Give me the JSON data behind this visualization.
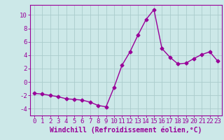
{
  "x": [
    0,
    1,
    2,
    3,
    4,
    5,
    6,
    7,
    8,
    9,
    10,
    11,
    12,
    13,
    14,
    15,
    16,
    17,
    18,
    19,
    20,
    21,
    22,
    23
  ],
  "y": [
    -1.7,
    -1.8,
    -2.0,
    -2.2,
    -2.5,
    -2.6,
    -2.7,
    -3.0,
    -3.5,
    -3.7,
    -0.8,
    2.5,
    4.5,
    7.0,
    9.3,
    10.8,
    5.0,
    3.7,
    2.7,
    2.8,
    3.5,
    4.1,
    4.5,
    3.1
  ],
  "line_color": "#990099",
  "marker": "D",
  "marker_size": 2.5,
  "line_width": 1.0,
  "bg_color": "#cce8e8",
  "grid_color": "#aacccc",
  "xlabel": "Windchill (Refroidissement éolien,°C)",
  "xlabel_color": "#990099",
  "tick_color": "#990099",
  "spine_color": "#990099",
  "xlim": [
    -0.5,
    23.5
  ],
  "ylim": [
    -5.0,
    11.5
  ],
  "yticks": [
    -4,
    -2,
    0,
    2,
    4,
    6,
    8,
    10
  ],
  "xticks": [
    0,
    1,
    2,
    3,
    4,
    5,
    6,
    7,
    8,
    9,
    10,
    11,
    12,
    13,
    14,
    15,
    16,
    17,
    18,
    19,
    20,
    21,
    22,
    23
  ],
  "font_size": 6.5,
  "xlabel_fontsize": 7.0
}
